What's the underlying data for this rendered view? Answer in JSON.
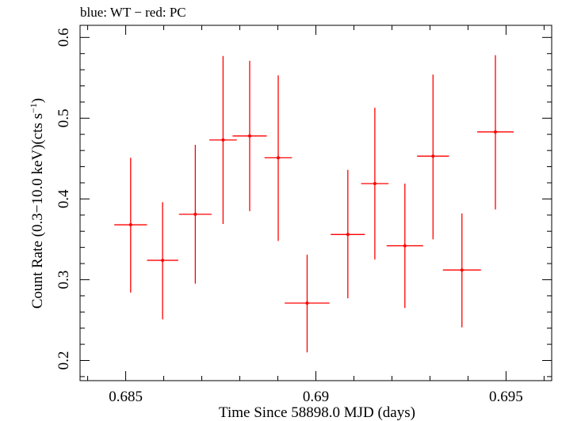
{
  "chart_data": {
    "type": "scatter",
    "title": "blue: WT − red: PC",
    "xlabel": "Time Since 58898.0 MJD (days)",
    "ylabel_main": "Count Rate (0.3−10.0 keV)(cts s",
    "ylabel_sup": "−1",
    "ylabel_close": ")",
    "xlim": [
      0.6838,
      0.6962
    ],
    "ylim": [
      0.175,
      0.615
    ],
    "x_major_ticks": [
      0.685,
      0.69,
      0.695
    ],
    "x_tick_labels": [
      "0.685",
      "0.69",
      "0.695"
    ],
    "x_minor_step": 0.001,
    "y_major_ticks": [
      0.2,
      0.3,
      0.4,
      0.5,
      0.6
    ],
    "y_tick_labels": [
      "0.2",
      "0.3",
      "0.4",
      "0.5",
      "0.6"
    ],
    "y_minor_step": 0.02,
    "grid": false,
    "series": [
      {
        "name": "PC",
        "color": "#ff0000",
        "points": [
          {
            "x": 0.68513,
            "xerr": 0.00043,
            "y": 0.368,
            "yerr_low": 0.084,
            "yerr_high": 0.083
          },
          {
            "x": 0.68597,
            "xerr": 0.00041,
            "y": 0.324,
            "yerr_low": 0.073,
            "yerr_high": 0.072
          },
          {
            "x": 0.68683,
            "xerr": 0.00043,
            "y": 0.381,
            "yerr_low": 0.086,
            "yerr_high": 0.086
          },
          {
            "x": 0.68756,
            "xerr": 0.00036,
            "y": 0.473,
            "yerr_low": 0.104,
            "yerr_high": 0.104
          },
          {
            "x": 0.68826,
            "xerr": 0.00045,
            "y": 0.478,
            "yerr_low": 0.093,
            "yerr_high": 0.093
          },
          {
            "x": 0.68901,
            "xerr": 0.00036,
            "y": 0.451,
            "yerr_low": 0.103,
            "yerr_high": 0.102
          },
          {
            "x": 0.68977,
            "xerr": 0.00059,
            "y": 0.271,
            "yerr_low": 0.061,
            "yerr_high": 0.06
          },
          {
            "x": 0.69084,
            "xerr": 0.00045,
            "y": 0.356,
            "yerr_low": 0.079,
            "yerr_high": 0.08
          },
          {
            "x": 0.69155,
            "xerr": 0.00036,
            "y": 0.419,
            "yerr_low": 0.094,
            "yerr_high": 0.094
          },
          {
            "x": 0.69234,
            "xerr": 0.00048,
            "y": 0.342,
            "yerr_low": 0.077,
            "yerr_high": 0.077
          },
          {
            "x": 0.69308,
            "xerr": 0.00042,
            "y": 0.453,
            "yerr_low": 0.103,
            "yerr_high": 0.101
          },
          {
            "x": 0.69384,
            "xerr": 0.0005,
            "y": 0.312,
            "yerr_low": 0.071,
            "yerr_high": 0.07
          },
          {
            "x": 0.69472,
            "xerr": 0.00048,
            "y": 0.483,
            "yerr_low": 0.096,
            "yerr_high": 0.095
          }
        ]
      }
    ]
  }
}
